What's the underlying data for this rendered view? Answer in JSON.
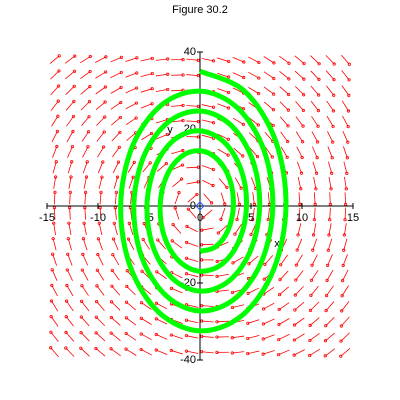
{
  "chart_data": {
    "type": "phase-portrait",
    "title": "Figure 30.2",
    "x_label": "x",
    "y_label": "y",
    "xlim": [
      -15,
      15
    ],
    "ylim": [
      -40,
      40
    ],
    "xticks": [
      -15,
      -10,
      -5,
      0,
      5,
      10,
      15
    ],
    "yticks": [
      -40,
      -20,
      0,
      20,
      40
    ],
    "field_color": "#ff0000",
    "series": [
      {
        "color": "#00ff00",
        "x": [
          0,
          4.32,
          7.39,
          8.43,
          7.2,
          4.11,
          0,
          -4.0,
          -6.83,
          -7.78,
          -6.65,
          -3.78,
          0,
          3.68,
          6.27,
          7.14,
          6.09,
          3.46,
          0,
          -3.35,
          -5.72,
          -6.49,
          -5.53,
          -3.14,
          0,
          3.03,
          5.16,
          5.85,
          4.97,
          2.82,
          0,
          -2.71,
          -4.6,
          -5.2,
          -4.41,
          -2.49,
          0,
          2.39,
          4.04,
          4.56,
          3.85,
          2.17,
          0,
          -2.06,
          -3.48,
          -3.91,
          -3.3,
          -1.85,
          0,
          1.74,
          2.93,
          3.27,
          2.74,
          1.53,
          0
        ],
        "values": [
          35,
          29.94,
          17.07,
          0,
          -16.64,
          -28.45,
          -32.42,
          -27.7,
          -15.78,
          0,
          15.35,
          26.21,
          29.84,
          25.47,
          14.49,
          0,
          -14.06,
          -23.98,
          -27.26,
          -23.24,
          -13.2,
          0,
          12.77,
          21.75,
          24.68,
          21.0,
          11.91,
          0,
          -11.48,
          -19.51,
          -22.1,
          -18.77,
          -10.62,
          0,
          10.19,
          17.28,
          19.52,
          16.53,
          9.33,
          0,
          -8.9,
          -15.04,
          -16.94,
          -14.3,
          -8.04,
          0,
          7.61,
          12.81,
          14.36,
          12.06,
          6.75,
          0,
          -6.32,
          -10.57,
          -11.78
        ]
      }
    ]
  }
}
